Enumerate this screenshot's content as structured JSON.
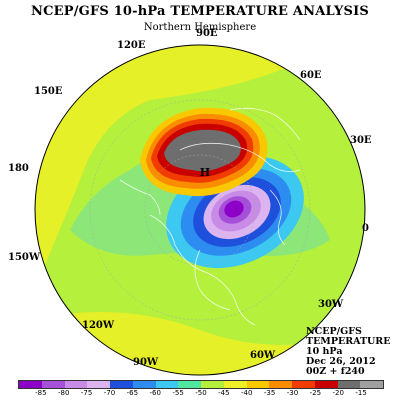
{
  "title": "NCEP/GFS 10-hPa TEMPERATURE ANALYSIS",
  "subtitle": "Northern Hemisphere",
  "longitude_labels": [
    "90E",
    "120E",
    "60E",
    "150E",
    "30E",
    "180",
    "0",
    "150W",
    "30W",
    "120W",
    "60W",
    "90W"
  ],
  "high_label": "H",
  "info": {
    "source": "NCEP/GFS",
    "variable": "TEMPERATURE",
    "level": "10 hPa",
    "date": "Dec 26, 2012",
    "time": "00Z + f240"
  },
  "colorbar": {
    "labels": [
      "-85",
      "-80",
      "-75",
      "-70",
      "-65",
      "-60",
      "-55",
      "-50",
      "-45",
      "-40",
      "-35",
      "-30",
      "-25",
      "-20",
      "-15"
    ],
    "colors": [
      "#8c00c8",
      "#a64fd9",
      "#c88ce6",
      "#dcb4f0",
      "#1e50dc",
      "#2c8cf0",
      "#3cc8f0",
      "#50e6a0",
      "#b4f03c",
      "#f0f028",
      "#fac800",
      "#fa8c00",
      "#f03c00",
      "#c80000",
      "#6e6e6e",
      "#a0a0a0"
    ]
  },
  "map_colors": {
    "background_field": "#b4f03c",
    "outer_field": "#e6f028",
    "warm_core": "#6e6e6e",
    "cold_core": "#8c00c8"
  }
}
